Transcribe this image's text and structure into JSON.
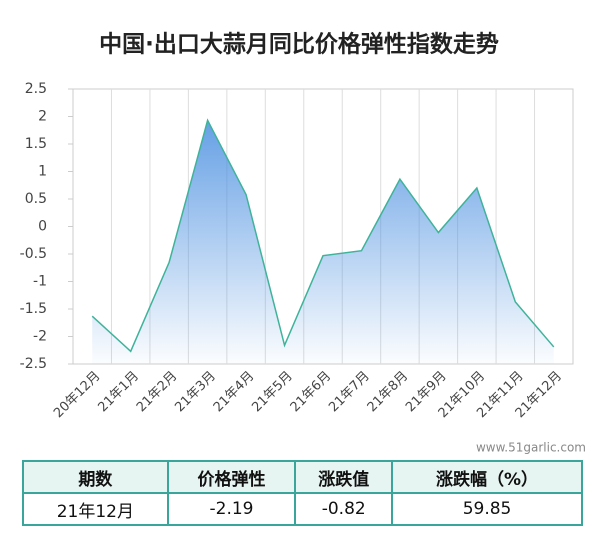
{
  "chart_data": {
    "type": "area",
    "title": "中国·出口大蒜月同比价格弹性指数走势",
    "categories": [
      "20年12月",
      "21年1月",
      "21年2月",
      "21年3月",
      "21年4月",
      "21年5月",
      "21年6月",
      "21年7月",
      "21年8月",
      "21年9月",
      "21年10月",
      "21年11月",
      "21年12月"
    ],
    "values": [
      -1.63,
      -2.27,
      -0.65,
      1.93,
      0.58,
      -2.16,
      -0.53,
      -0.44,
      0.86,
      -0.11,
      0.7,
      -1.37,
      -2.19
    ],
    "color": "#3fb39a",
    "area_color": "#4a8fe0",
    "ylim": [
      -2.5,
      2.5
    ],
    "yticks": [
      -2.5,
      -2,
      -1.5,
      -1,
      -0.5,
      0,
      0.5,
      1,
      1.5,
      2,
      2.5
    ],
    "grid": true
  },
  "watermark": "www.51garlic.com",
  "table": {
    "header": [
      "期数",
      "价格弹性",
      "涨跌值",
      "涨跌幅（%）"
    ],
    "rows": [
      [
        "21年12月",
        "-2.19",
        "-0.82",
        "59.85"
      ]
    ]
  }
}
